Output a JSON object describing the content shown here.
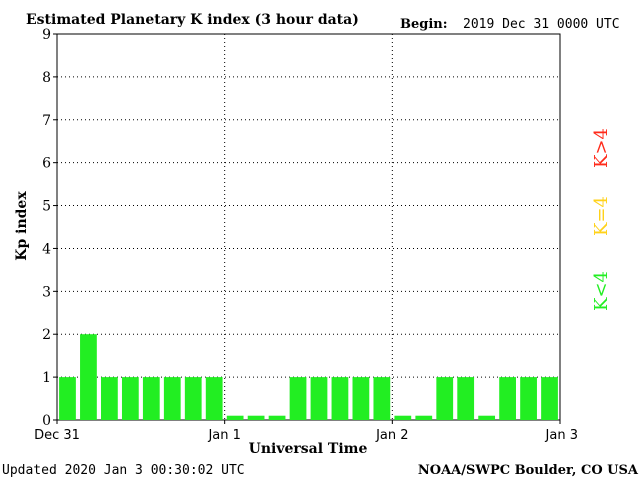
{
  "header": {
    "title": "Estimated Planetary K index (3 hour data)",
    "begin_label": "Begin:",
    "begin_value": "2019 Dec 31 0000 UTC"
  },
  "footer": {
    "updated": "Updated 2020 Jan  3 00:30:02 UTC",
    "source": "NOAA/SWPC Boulder, CO USA"
  },
  "legend": {
    "high": {
      "label": "K>4",
      "color": "#ff2a1a"
    },
    "mid": {
      "label": "K=4",
      "color": "#ffd21a"
    },
    "low": {
      "label": "K<4",
      "color": "#22ee22"
    }
  },
  "chart_data": {
    "type": "bar",
    "title": "Estimated Planetary K index (3 hour data)",
    "xlabel": "Universal Time",
    "ylabel": "Kp index",
    "ylim": [
      0,
      9
    ],
    "yticks": [
      "0",
      "1",
      "2",
      "3",
      "4",
      "5",
      "6",
      "7",
      "8",
      "9"
    ],
    "xticks": [
      "Dec 31",
      "Jan 1",
      "Jan 2",
      "Jan 3"
    ],
    "grid": true,
    "bar_color": "#22ee22",
    "series": [
      {
        "values": [
          1,
          2,
          1,
          1,
          1,
          1,
          1,
          1,
          0.1,
          0.1,
          0.1,
          1,
          1,
          1,
          1,
          1,
          0.1,
          0.1,
          1,
          1,
          0.1,
          1,
          1,
          1
        ]
      }
    ]
  }
}
